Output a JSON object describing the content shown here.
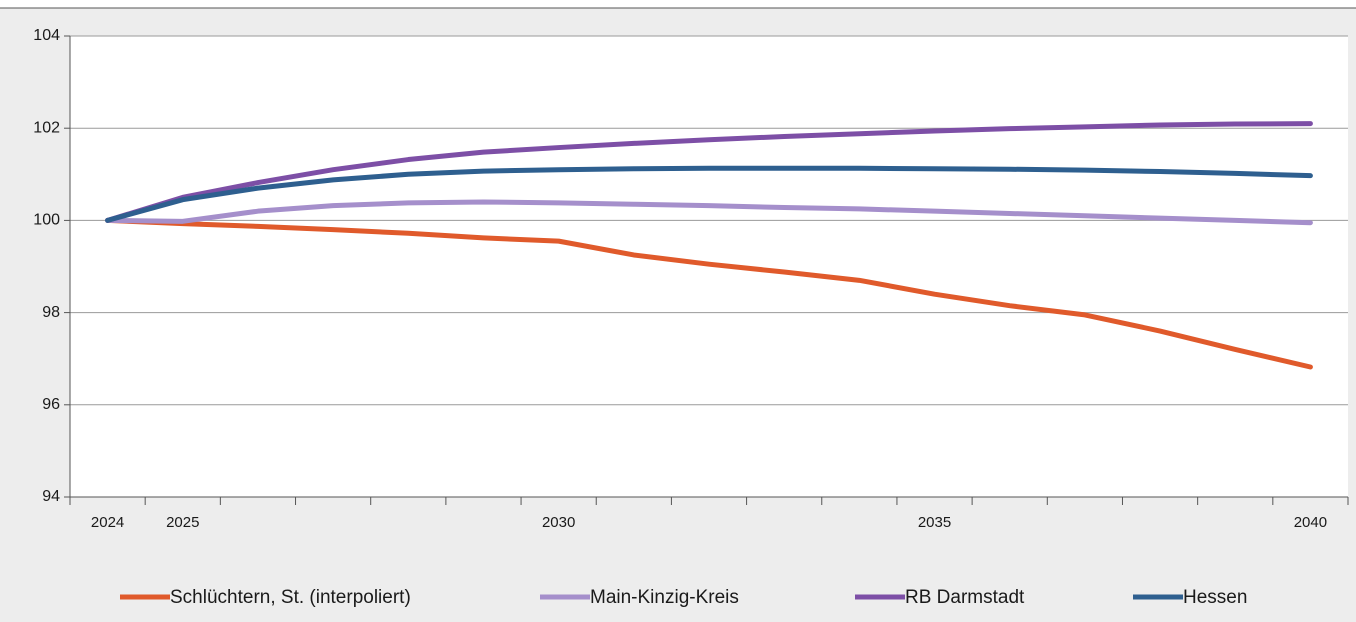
{
  "chart_data": {
    "type": "line",
    "categories": [
      "2024",
      "2025",
      null,
      null,
      null,
      null,
      "2030",
      null,
      null,
      null,
      null,
      "2035",
      null,
      null,
      null,
      null,
      "2040"
    ],
    "series": [
      {
        "name": "Schlüchtern, St. (interpoliert)",
        "color": "#e05a2b",
        "values": [
          100,
          99.93,
          99.87,
          99.8,
          99.72,
          99.62,
          99.55,
          99.25,
          99.05,
          98.88,
          98.7,
          98.4,
          98.15,
          97.95,
          97.6,
          97.2,
          96.82
        ]
      },
      {
        "name": "Main-Kinzig-Kreis",
        "color": "#a58fcb",
        "values": [
          100,
          99.98,
          100.2,
          100.32,
          100.38,
          100.4,
          100.38,
          100.35,
          100.32,
          100.28,
          100.25,
          100.2,
          100.15,
          100.1,
          100.05,
          100.0,
          99.95
        ]
      },
      {
        "name": "RB Darmstadt",
        "color": "#7d4fa6",
        "values": [
          100,
          100.5,
          100.82,
          101.1,
          101.32,
          101.48,
          101.58,
          101.67,
          101.75,
          101.82,
          101.88,
          101.94,
          101.99,
          102.03,
          102.07,
          102.09,
          102.1
        ]
      },
      {
        "name": "Hessen",
        "color": "#2e5f8f",
        "values": [
          100,
          100.45,
          100.7,
          100.88,
          101.0,
          101.07,
          101.1,
          101.12,
          101.13,
          101.13,
          101.13,
          101.12,
          101.11,
          101.09,
          101.06,
          101.02,
          100.97
        ]
      }
    ],
    "ylim": [
      94,
      104
    ],
    "yticks": [
      94,
      96,
      98,
      100,
      102,
      104
    ],
    "grid": true,
    "legend": "bottom"
  }
}
